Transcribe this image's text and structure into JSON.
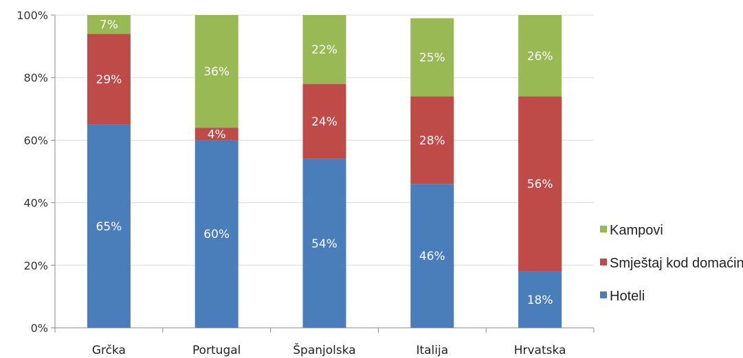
{
  "chart_data": {
    "type": "bar",
    "stacked": true,
    "percent": true,
    "categories": [
      "Grčka",
      "Portugal",
      "Španjolska",
      "Italija",
      "Hrvatska"
    ],
    "series": [
      {
        "name": "Hoteli",
        "color": "#4a7ebb",
        "values": [
          65,
          60,
          54,
          46,
          18
        ],
        "labels": [
          "65%",
          "60%",
          "54%",
          "46%",
          "18%"
        ]
      },
      {
        "name": "Smještaj kod domaćina",
        "color": "#be4b48",
        "values": [
          29,
          4,
          24,
          28,
          56
        ],
        "labels": [
          "29%",
          "4%",
          "24%",
          "28%",
          "56%"
        ]
      },
      {
        "name": "Kampovi",
        "color": "#98b954",
        "values": [
          7,
          36,
          22,
          25,
          26
        ],
        "labels": [
          "7%",
          "36%",
          "22%",
          "25%",
          "26%"
        ]
      }
    ],
    "ylim": [
      0,
      100
    ],
    "yticks": [
      "0%",
      "20%",
      "40%",
      "60%",
      "80%",
      "100%"
    ],
    "grid": true,
    "legend_position": "right",
    "legend_order": [
      "Kampovi",
      "Smještaj kod domaćina",
      "Hoteli"
    ]
  }
}
